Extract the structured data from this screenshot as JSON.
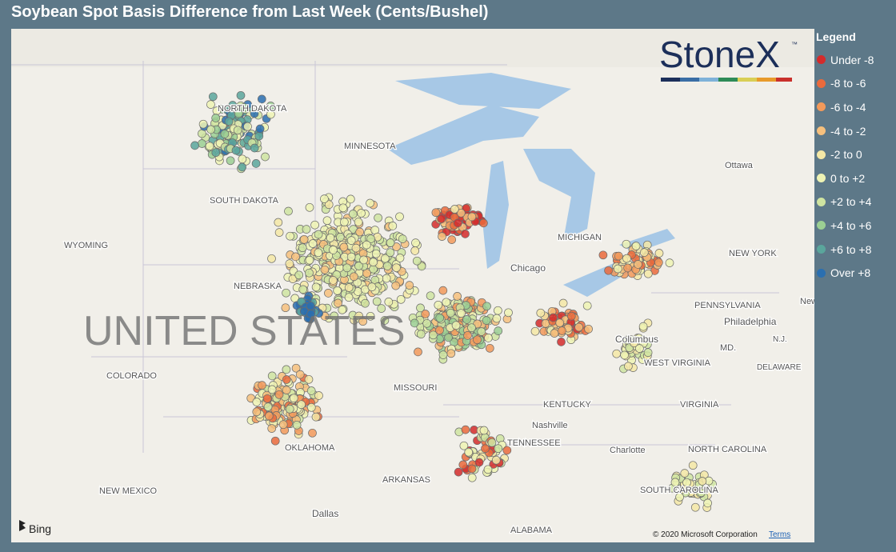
{
  "title": "Soybean Spot Basis Difference from Last Week (Cents/Bushel)",
  "legend": {
    "title": "Legend",
    "items": [
      {
        "label": "Under -8",
        "color": "#d42b2b"
      },
      {
        "label": "-8 to -6",
        "color": "#ea6a3c"
      },
      {
        "label": "-6 to -4",
        "color": "#f2995a"
      },
      {
        "label": "-4 to -2",
        "color": "#f6c07d"
      },
      {
        "label": "-2 to 0",
        "color": "#f4e8a6"
      },
      {
        "label": "0 to +2",
        "color": "#eef3b4"
      },
      {
        "label": "+2 to +4",
        "color": "#cfe4a1"
      },
      {
        "label": "+4 to +6",
        "color": "#9bcf93"
      },
      {
        "label": "+6 to +8",
        "color": "#5aa69c"
      },
      {
        "label": "Over +8",
        "color": "#2a6fb0"
      }
    ]
  },
  "logo": {
    "text": "StoneX",
    "mark": "™"
  },
  "map_labels": [
    "NORTH DAKOTA",
    "MINNESOTA",
    "SOUTH DAKOTA",
    "WYOMING",
    "NEBRASKA",
    "UNITED STATES",
    "COLORADO",
    "MISSOURI",
    "KENTUCKY",
    "WEST VIRGINIA",
    "VIRGINIA",
    "PENNSYLVANIA",
    "NEW YORK",
    "MICHIGAN",
    "Chicago",
    "Columbus",
    "Nashville",
    "TENNESSEE",
    "OKLAHOMA",
    "ARKANSAS",
    "NEW MEXICO",
    "Dallas",
    "ALABAMA",
    "Charlotte",
    "NORTH CAROLINA",
    "SOUTH CAROLINA",
    "Philadelphia",
    "New York",
    "Ottawa",
    "DELAWARE",
    "MD.",
    "N.J."
  ],
  "attribution": {
    "provider": "Bing",
    "copyright": "© 2020 Microsoft Corporation",
    "terms": "Terms"
  }
}
